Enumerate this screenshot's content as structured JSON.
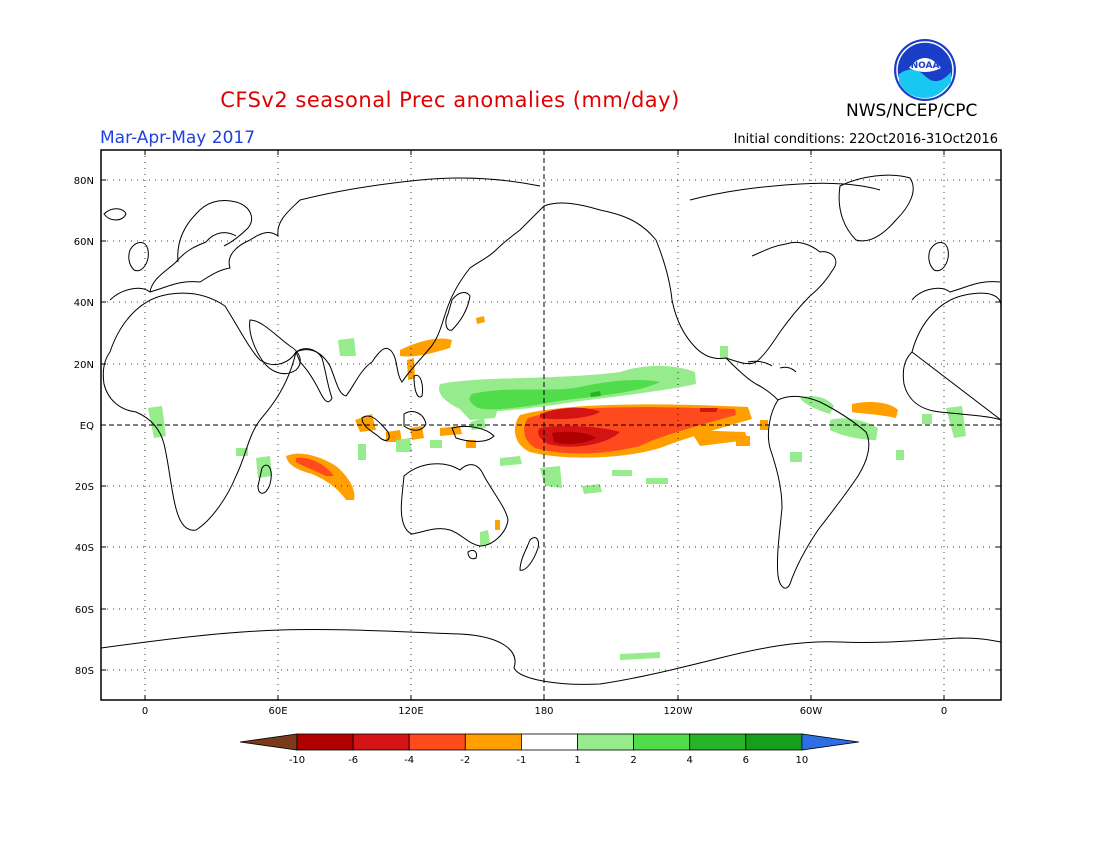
{
  "header": {
    "title": "CFSv2 seasonal Prec anomalies (mm/day)",
    "season": "Mar-Apr-May 2017",
    "initial_conditions": "Initial conditions: 22Oct2016-31Oct2016",
    "agency": "NWS/NCEP/CPC"
  },
  "logo": {
    "text": "NOAA",
    "icon": "noaa-logo-icon"
  },
  "map": {
    "lat_labels": [
      "80N",
      "60N",
      "40N",
      "20N",
      "EQ",
      "20S",
      "40S",
      "60S",
      "80S"
    ],
    "lon_labels": [
      "0",
      "60E",
      "120E",
      "180",
      "120W",
      "60W",
      "0"
    ],
    "grid": "dotted",
    "reference_lines": [
      "Equator",
      "Dateline"
    ]
  },
  "colorbar": {
    "labels": [
      "-10",
      "-6",
      "-4",
      "-2",
      "-1",
      "1",
      "2",
      "4",
      "6",
      "10"
    ],
    "colors": [
      "#7a3b1a",
      "#b00000",
      "#d41414",
      "#ff4a1e",
      "#ffa000",
      "#ffffff",
      "#96eb8c",
      "#50dc4b",
      "#28b428",
      "#189e1e",
      "#2d6ee6"
    ]
  },
  "anomaly_colors": {
    "dry_weak": "#ffa000",
    "dry_moderate": "#ff4a1e",
    "dry_strong": "#d41414",
    "dry_severe": "#b00000",
    "wet_weak": "#96eb8c",
    "wet_moderate": "#50dc4b",
    "wet_strong": "#28b428"
  }
}
